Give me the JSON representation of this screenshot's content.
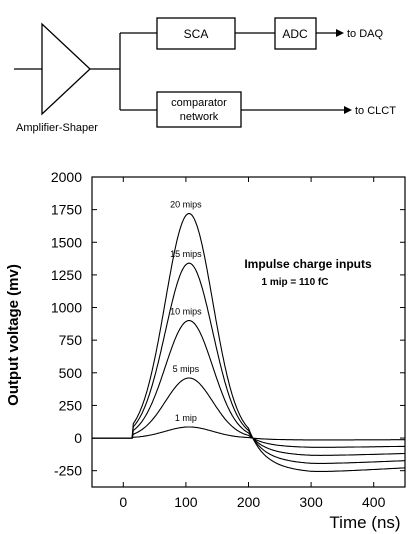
{
  "block_diagram": {
    "amplifier_label": "Amplifier-Shaper",
    "sca_label": "SCA",
    "adc_label": "ADC",
    "daq_label": "to DAQ",
    "comparator_label_line1": "comparator",
    "comparator_label_line2": "network",
    "clct_label": "to CLCT"
  },
  "chart_data": {
    "type": "line",
    "title": "",
    "xlabel": "Time (ns)",
    "ylabel": "Output voltage (mv)",
    "xlim": [
      -50,
      450
    ],
    "ylim": [
      -375,
      2000
    ],
    "xticks": [
      0,
      100,
      200,
      300,
      400
    ],
    "yticks": [
      -250,
      0,
      250,
      500,
      750,
      1000,
      1250,
      1500,
      1750,
      2000
    ],
    "grid": false,
    "annotation_line1": "Impulse charge inputs",
    "annotation_line2": "1 mip = 110 fC",
    "series": [
      {
        "name": "1 mip",
        "peak": 85,
        "undershoot": -15
      },
      {
        "name": "5 mips",
        "peak": 460,
        "undershoot": -75
      },
      {
        "name": "10 mips",
        "peak": 900,
        "undershoot": -140
      },
      {
        "name": "15 mips",
        "peak": 1340,
        "undershoot": -205
      },
      {
        "name": "20 mips",
        "peak": 1720,
        "undershoot": -270
      }
    ],
    "line_color": "#000000"
  }
}
